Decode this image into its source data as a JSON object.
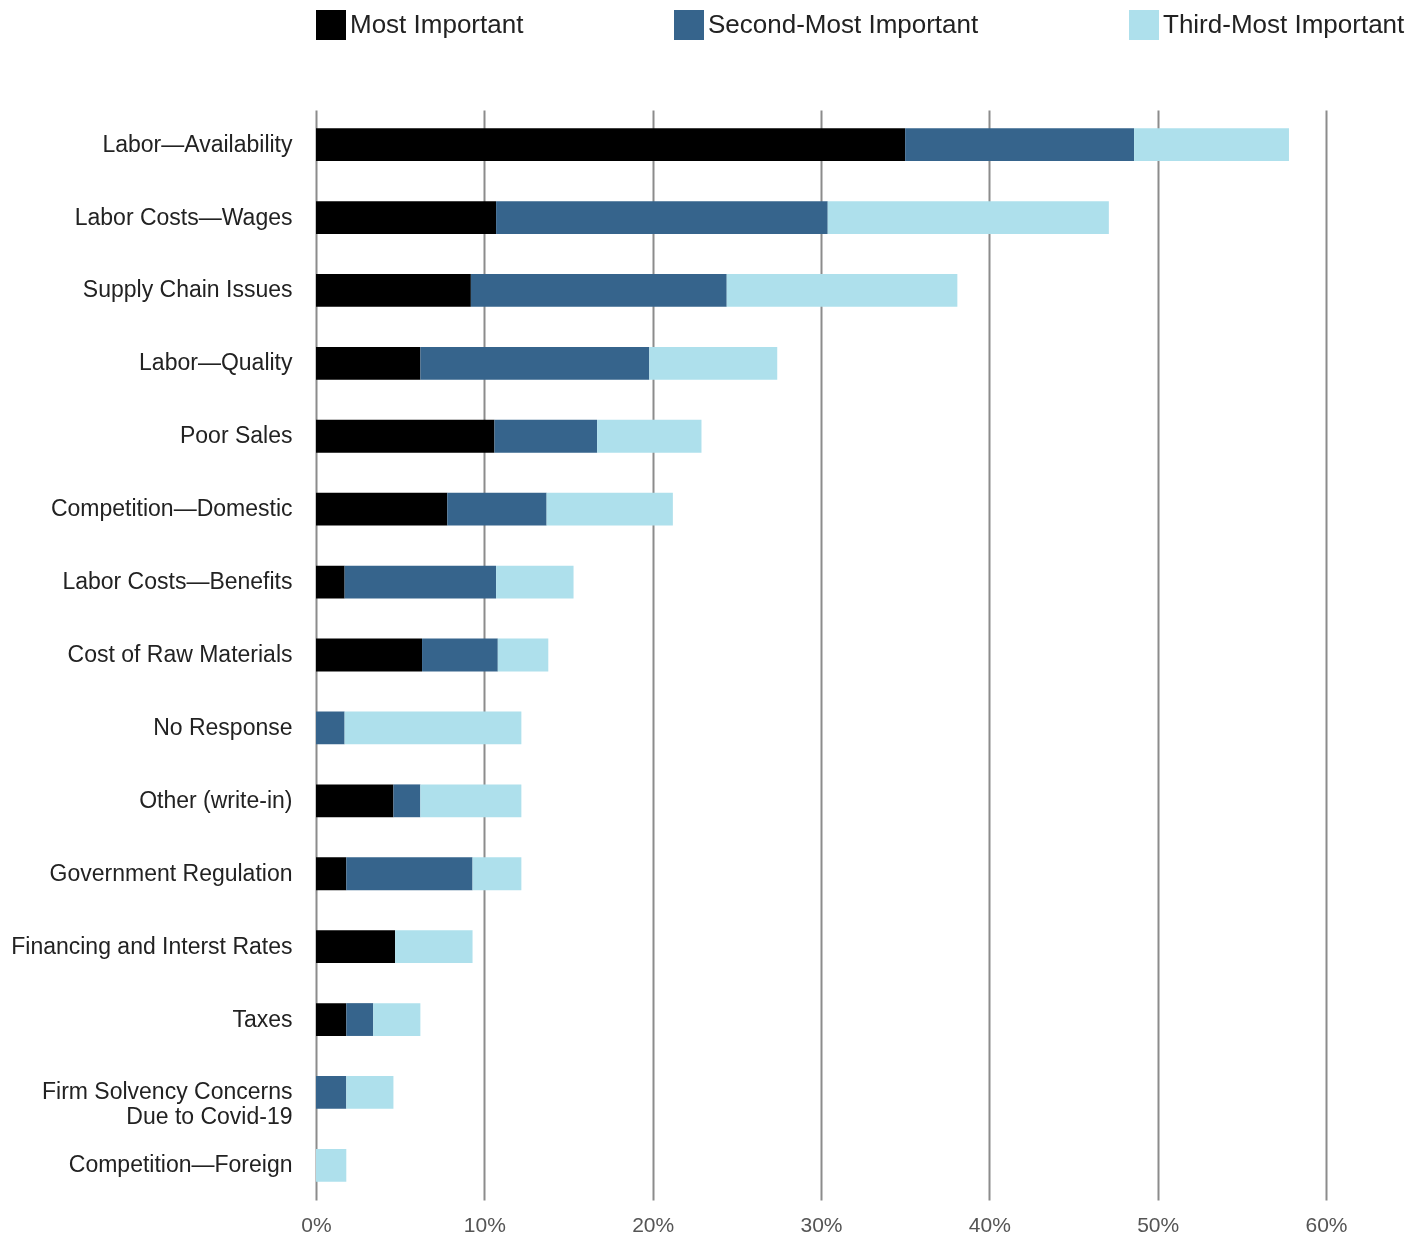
{
  "chart_data": {
    "type": "bar",
    "orientation": "horizontal",
    "stacked": true,
    "categories": [
      "Labor—Availability",
      "Labor Costs—Wages",
      "Supply Chain Issues",
      "Labor—Quality",
      "Poor Sales",
      "Competition—Domestic",
      "Labor Costs—Benefits",
      "Cost of Raw Materials",
      "No Response",
      "Other (write-in)",
      "Government Regulation",
      "Financing and Interst Rates",
      "Taxes",
      "Firm Solvency Concerns Due to Covid-19",
      "Competition—Foreign"
    ],
    "series": [
      {
        "name": "Most Important",
        "color": "#000000",
        "values": [
          35.0,
          10.7,
          9.2,
          6.2,
          10.6,
          7.8,
          1.7,
          6.3,
          0,
          4.6,
          1.8,
          4.7,
          1.8,
          0,
          0
        ]
      },
      {
        "name": "Second-Most Important",
        "color": "#36648c",
        "values": [
          13.6,
          19.7,
          15.2,
          13.6,
          6.1,
          5.9,
          9.0,
          4.5,
          1.7,
          1.6,
          7.5,
          0,
          1.6,
          1.8,
          0
        ]
      },
      {
        "name": "Third-Most Important",
        "color": "#aee0ec",
        "values": [
          9.2,
          16.7,
          13.7,
          7.6,
          6.2,
          7.5,
          4.6,
          3.0,
          10.5,
          6.0,
          2.9,
          4.6,
          2.8,
          2.8,
          1.8
        ]
      }
    ],
    "xlim": [
      0,
      60
    ],
    "xticks": [
      {
        "value": 0,
        "label": "0%"
      },
      {
        "value": 10,
        "label": "10%"
      },
      {
        "value": 20,
        "label": "20%"
      },
      {
        "value": 30,
        "label": "30%"
      },
      {
        "value": 40,
        "label": "40%"
      },
      {
        "value": 50,
        "label": "50%"
      },
      {
        "value": 60,
        "label": "60%"
      }
    ],
    "grid": "x",
    "legend": "top"
  }
}
